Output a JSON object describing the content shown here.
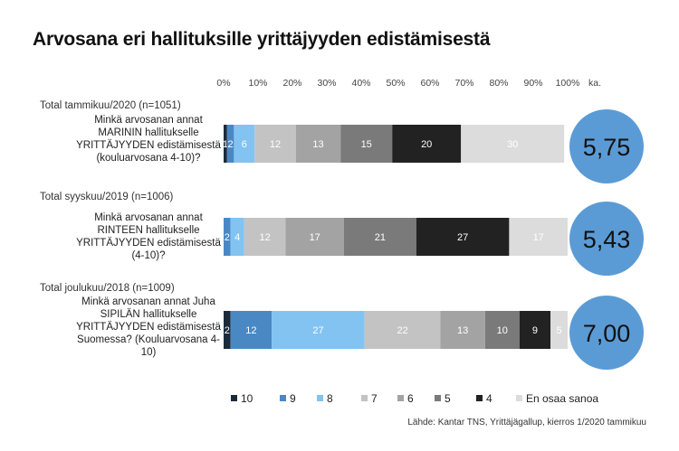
{
  "title": "Arvosana eri hallituksille yrittäjyyden edistämisestä",
  "source": "Lähde: Kantar TNS, Yrittäjägallup, kierros 1/2020 tammikuu",
  "chart_data": {
    "type": "bar",
    "orientation": "horizontal",
    "stacked": true,
    "percent_stacked": true,
    "xlim": [
      0,
      100
    ],
    "x_ticks": [
      "0%",
      "10%",
      "20%",
      "30%",
      "40%",
      "50%",
      "60%",
      "70%",
      "80%",
      "90%",
      "100%"
    ],
    "x_unit_label": "ka.",
    "legend_position": "bottom",
    "series": [
      {
        "name": "10",
        "color": "#1c2b3a"
      },
      {
        "name": "9",
        "color": "#4a88c4"
      },
      {
        "name": "8",
        "color": "#82c3f2"
      },
      {
        "name": "7",
        "color": "#c3c3c3"
      },
      {
        "name": "6",
        "color": "#a3a3a3"
      },
      {
        "name": "5",
        "color": "#7a7a7a"
      },
      {
        "name": "4",
        "color": "#222222"
      },
      {
        "name": "En osaa sanoa",
        "color": "#dcdcdc"
      }
    ],
    "groups": [
      {
        "label": "Total tammikuu/2020  (n=1051)",
        "question": [
          "Minkä arvosanan annat",
          "MARININ hallitukselle",
          "YRITTÄJYYDEN edistämisestä",
          "(kouluarvosana 4-10)?"
        ],
        "values": [
          1,
          2,
          6,
          12,
          13,
          15,
          20,
          30
        ],
        "labels": [
          "1",
          "2",
          "6",
          "12",
          "13",
          "15",
          "20",
          "30"
        ],
        "average": "5,75"
      },
      {
        "label": "Total syyskuu/2019 (n=1006)",
        "question": [
          "Minkä arvosanan annat",
          "RINTEEN hallitukselle",
          "YRITTÄJYYDEN edistämisestä",
          "(4-10)?"
        ],
        "values": [
          0,
          2,
          4,
          12,
          17,
          21,
          27,
          17
        ],
        "labels": [
          "",
          "2",
          "4",
          "12",
          "17",
          "21",
          "27",
          "17"
        ],
        "average": "5,43"
      },
      {
        "label": "Total joulukuu/2018 (n=1009)",
        "question": [
          "Minkä arvosanan annat Juha",
          "SIPILÄN hallitukselle",
          "YRITTÄJYYDEN edistämisestä",
          "Suomessa? (Kouluarvosana 4-",
          "10)"
        ],
        "values": [
          2,
          12,
          27,
          22,
          13,
          10,
          9,
          5
        ],
        "labels": [
          "2",
          "12",
          "27",
          "22",
          "13",
          "10",
          "9",
          "5"
        ],
        "average": "7,00"
      }
    ]
  }
}
